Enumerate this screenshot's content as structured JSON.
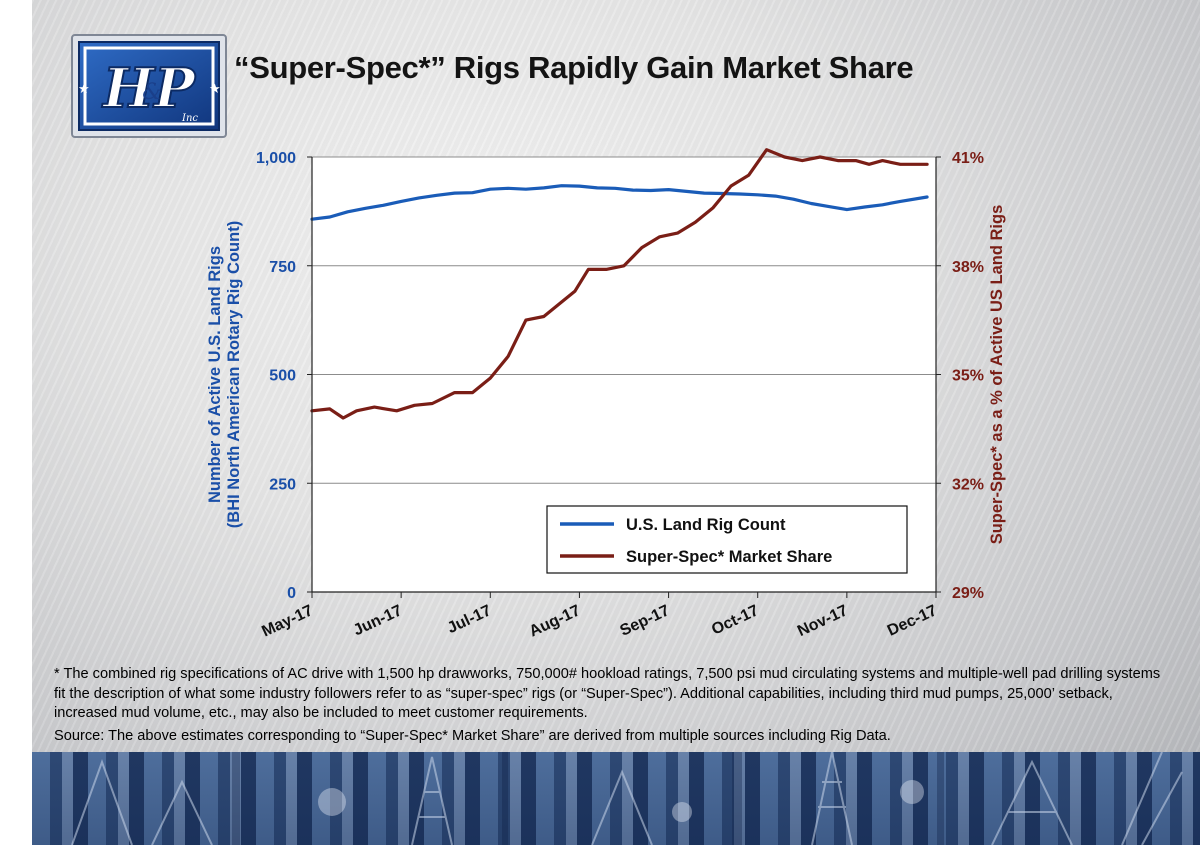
{
  "slide": {
    "title": "“Super-Spec*” Rigs Rapidly Gain Market Share",
    "logo_text": "H&P Inc",
    "footnote": "* The combined rig specifications of AC drive with 1,500 hp drawworks, 750,000# hookload ratings, 7,500 psi mud circulating systems and multiple-well pad drilling systems fit the description of what some industry followers refer to as “super-spec” rigs (or “Super-Spec”). Additional capabilities, including third mud pumps, 25,000’ setback, increased mud volume, etc., may also be included to meet customer requirements.",
    "source": "Source: The above estimates corresponding to “Super-Spec* Market Share” are derived from multiple sources including Rig Data."
  },
  "chart_data": {
    "type": "line",
    "x_tick_labels": [
      "May-17",
      "Jun-17",
      "Jul-17",
      "Aug-17",
      "Sep-17",
      "Oct-17",
      "Nov-17",
      "Dec-17"
    ],
    "x_range": [
      0,
      7
    ],
    "ylabel_left": [
      "Number of Active U.S. Land Rigs",
      "(BHI North American Rotary Rig Count)"
    ],
    "ylabel_right": "Super-Spec* as a % of Active US Land Rigs",
    "ylim_left": [
      0,
      1000
    ],
    "yticks_left": [
      0,
      250,
      500,
      750,
      1000
    ],
    "ytick_labels_left": [
      "0",
      "250",
      "500",
      "750",
      "1,000"
    ],
    "ylim_right": [
      29,
      41
    ],
    "yticks_right": [
      29,
      32,
      35,
      38,
      41
    ],
    "ytick_labels_right": [
      "29%",
      "32%",
      "35%",
      "38%",
      "41%"
    ],
    "grid": true,
    "legend_position": "lower-right",
    "series": [
      {
        "name": "U.S. Land Rig Count",
        "axis": "left",
        "color": "#1a5cb8",
        "x": [
          0,
          0.2,
          0.4,
          0.6,
          0.8,
          1.0,
          1.2,
          1.4,
          1.6,
          1.8,
          2.0,
          2.2,
          2.4,
          2.6,
          2.8,
          3.0,
          3.2,
          3.4,
          3.6,
          3.8,
          4.0,
          4.2,
          4.4,
          4.6,
          4.8,
          5.0,
          5.2,
          5.4,
          5.6,
          5.8,
          6.0,
          6.2,
          6.4,
          6.6,
          6.9
        ],
        "values": [
          857,
          862,
          874,
          882,
          889,
          898,
          906,
          912,
          917,
          918,
          926,
          928,
          926,
          929,
          934,
          933,
          929,
          928,
          924,
          923,
          925,
          921,
          917,
          916,
          915,
          913,
          910,
          903,
          893,
          886,
          879,
          885,
          890,
          898,
          908
        ]
      },
      {
        "name": "Super-Spec* Market Share",
        "axis": "right",
        "color": "#7a1e16",
        "x": [
          0,
          0.2,
          0.35,
          0.5,
          0.7,
          0.95,
          1.15,
          1.35,
          1.6,
          1.8,
          2.0,
          2.2,
          2.4,
          2.6,
          2.8,
          2.95,
          3.1,
          3.3,
          3.5,
          3.7,
          3.9,
          4.1,
          4.3,
          4.5,
          4.7,
          4.9,
          5.1,
          5.3,
          5.5,
          5.7,
          5.9,
          6.1,
          6.25,
          6.4,
          6.6,
          6.75,
          6.9
        ],
        "values": [
          34.0,
          34.05,
          33.8,
          34.0,
          34.1,
          34.0,
          34.15,
          34.2,
          34.5,
          34.5,
          34.9,
          35.5,
          36.5,
          36.6,
          37.0,
          37.3,
          37.9,
          37.9,
          38.0,
          38.5,
          38.8,
          38.9,
          39.2,
          39.6,
          40.2,
          40.5,
          41.2,
          41.0,
          40.9,
          41.0,
          40.9,
          40.9,
          40.8,
          40.9,
          40.8,
          40.8,
          40.8
        ]
      }
    ]
  }
}
